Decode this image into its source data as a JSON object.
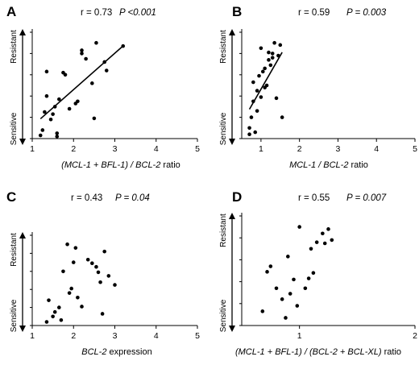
{
  "chart_data": [
    {
      "type": "scatter",
      "panel": "A",
      "stats": {
        "r_text": "r = 0.73",
        "p_text": "P <0.001"
      },
      "xlabel": "(MCL-1 + BFL-1) / BCL-2 ratio",
      "xlabel_parts": [
        {
          "text": "(MCL-1 + BFL-1) / BCL-2",
          "italic": true
        },
        {
          "text": " ratio",
          "italic": false
        }
      ],
      "ylabel_top": "Resistant",
      "ylabel_bottom": "Sensitive",
      "xticks": [
        "1",
        "2",
        "3",
        "4",
        "5"
      ],
      "xlim": [
        1,
        5
      ],
      "ylim": [
        0,
        10
      ],
      "trendline": true,
      "x": [
        1.2,
        1.25,
        1.3,
        1.35,
        1.35,
        1.45,
        1.5,
        1.55,
        1.6,
        1.6,
        1.65,
        1.75,
        1.8,
        1.9,
        2.05,
        2.1,
        2.2,
        2.2,
        2.3,
        2.45,
        2.5,
        2.55,
        2.75,
        2.8,
        3.2
      ],
      "y": [
        0.3,
        0.8,
        2.5,
        4.0,
        6.3,
        1.8,
        2.3,
        3.0,
        0.5,
        0.2,
        3.7,
        6.2,
        6.0,
        2.8,
        3.3,
        3.5,
        8.0,
        8.3,
        7.5,
        5.2,
        1.9,
        9.0,
        7.2,
        6.4,
        8.7
      ]
    },
    {
      "type": "scatter",
      "panel": "B",
      "stats": {
        "r_text": "r = 0.59",
        "p_text": "P = 0.003"
      },
      "xlabel": "MCL-1 / BCL-2 ratio",
      "xlabel_parts": [
        {
          "text": "MCL-1 / BCL-2",
          "italic": true
        },
        {
          "text": " ratio",
          "italic": false
        }
      ],
      "ylabel_top": "Resistant",
      "ylabel_bottom": "Sensitive",
      "xticks": [
        "1",
        "2",
        "3",
        "4",
        "5"
      ],
      "xlim": [
        0.5,
        5
      ],
      "ylim": [
        0,
        10
      ],
      "trendline": true,
      "x": [
        0.7,
        0.7,
        0.75,
        0.8,
        0.8,
        0.85,
        0.9,
        0.9,
        0.95,
        1.0,
        1.0,
        1.05,
        1.1,
        1.1,
        1.15,
        1.2,
        1.2,
        1.25,
        1.3,
        1.3,
        1.35,
        1.4,
        1.45,
        1.5,
        1.55
      ],
      "y": [
        0.4,
        1.0,
        2.0,
        3.5,
        5.3,
        0.6,
        2.6,
        4.5,
        5.9,
        3.9,
        8.5,
        6.3,
        6.6,
        4.8,
        5.0,
        7.4,
        8.1,
        6.9,
        8.0,
        7.6,
        9.0,
        3.8,
        7.8,
        8.8,
        2.0
      ]
    },
    {
      "type": "scatter",
      "panel": "C",
      "stats": {
        "r_text": "r = 0.43",
        "p_text": "P = 0.04"
      },
      "xlabel": "BCL-2 expression",
      "xlabel_parts": [
        {
          "text": "BCL-2",
          "italic": true
        },
        {
          "text": " expression",
          "italic": false
        }
      ],
      "ylabel_top": "Resistant",
      "ylabel_bottom": "Sensitive",
      "xticks": [
        "1",
        "2",
        "3",
        "4",
        "5"
      ],
      "xlim": [
        1,
        5
      ],
      "ylim": [
        0,
        10
      ],
      "trendline": false,
      "x": [
        1.35,
        1.4,
        1.5,
        1.55,
        1.65,
        1.7,
        1.75,
        1.85,
        1.9,
        1.95,
        2.0,
        2.05,
        2.1,
        2.2,
        2.35,
        2.45,
        2.55,
        2.6,
        2.65,
        2.7,
        2.75,
        2.85,
        3.0
      ],
      "y": [
        0.4,
        2.8,
        1.0,
        1.5,
        2.0,
        0.6,
        6.0,
        9.0,
        3.6,
        4.1,
        7.0,
        8.6,
        3.1,
        2.1,
        7.3,
        6.9,
        6.5,
        5.9,
        4.8,
        1.3,
        8.2,
        5.5,
        4.5
      ]
    },
    {
      "type": "scatter",
      "panel": "D",
      "stats": {
        "r_text": "r = 0.55",
        "p_text": "P = 0.007"
      },
      "xlabel": "(MCL-1 + BFL-1) / (BCL-2 + BCL-XL) ratio",
      "xlabel_parts": [
        {
          "text": "(MCL-1 + BFL-1) / (BCL-2 + BCL-XL)",
          "italic": true
        },
        {
          "text": " ratio",
          "italic": false
        }
      ],
      "ylabel_top": "Resistant",
      "ylabel_bottom": "Sensitive",
      "xticks": [
        "1",
        "2"
      ],
      "xlim": [
        0.5,
        2
      ],
      "ylim": [
        0,
        10
      ],
      "trendline": false,
      "x": [
        0.68,
        0.72,
        0.75,
        0.8,
        0.85,
        0.88,
        0.9,
        0.92,
        0.95,
        0.98,
        1.0,
        1.05,
        1.08,
        1.1,
        1.12,
        1.15,
        1.2,
        1.22,
        1.25,
        1.28
      ],
      "y": [
        1.3,
        4.9,
        5.4,
        3.4,
        2.4,
        0.7,
        6.3,
        2.9,
        4.2,
        1.8,
        9.0,
        3.4,
        4.3,
        7.0,
        4.8,
        7.6,
        8.4,
        7.5,
        8.8,
        7.8
      ]
    }
  ]
}
